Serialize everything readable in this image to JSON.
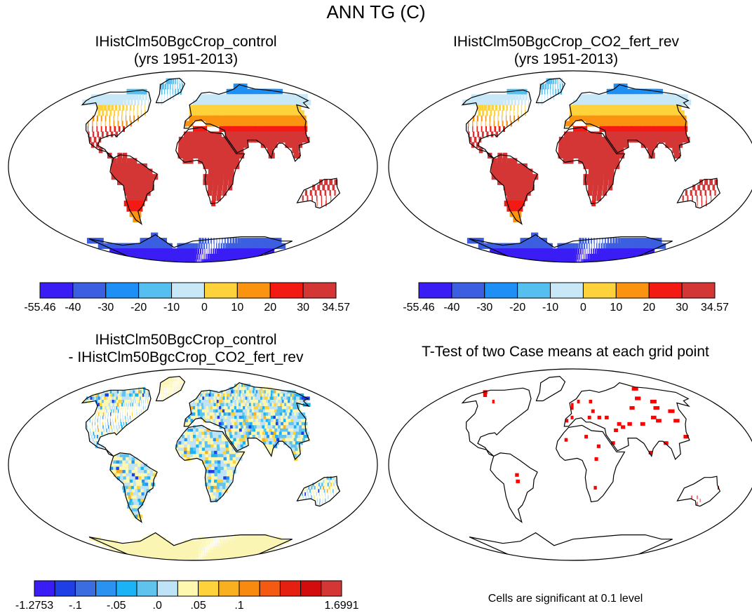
{
  "title": "ANN TG (C)",
  "panels": [
    {
      "id": "control",
      "title_lines": [
        "IHistClm50BgcCrop_control",
        "(yrs 1951-2013)"
      ],
      "field": "temperature"
    },
    {
      "id": "co2",
      "title_lines": [
        "IHistClm50BgcCrop_CO2_fert_rev",
        "(yrs 1951-2013)"
      ],
      "field": "temperature"
    },
    {
      "id": "diff",
      "title_lines": [
        "IHistClm50BgcCrop_control",
        "- IHistClm50BgcCrop_CO2_fert_rev"
      ],
      "field": "difference"
    },
    {
      "id": "ttest",
      "title_lines": [
        "T-Test of two Case means at each grid point"
      ],
      "field": "significance"
    }
  ],
  "colorbars": {
    "temperature": {
      "colors": [
        "#3a1cf5",
        "#3b5fe0",
        "#1e90f5",
        "#55c0f0",
        "#c8e8f8",
        "#fdd23a",
        "#f99310",
        "#f31a14",
        "#d43636"
      ],
      "labels": [
        "-55.46",
        "-40",
        "-30",
        "-20",
        "-10",
        "0",
        "10",
        "20",
        "30",
        "34.57"
      ]
    },
    "difference": {
      "colors": [
        "#3a1cf5",
        "#1e3fe6",
        "#3b6ce0",
        "#2a93f2",
        "#1bb3f5",
        "#60c3ee",
        "#bfe3f6",
        "#fdf7b0",
        "#fdd23a",
        "#f9b020",
        "#f98a10",
        "#f45a12",
        "#e62010",
        "#d20c0c",
        "#d43636"
      ],
      "labels": [
        "-1.2753",
        "",
        "-.1",
        "",
        "-.05",
        "",
        ".0",
        "",
        ".05",
        "",
        ".1",
        "",
        "",
        "",
        "",
        "1.6991"
      ],
      "shown_labels": [
        "-1.2753",
        "-.1",
        "-.05",
        ".0",
        ".05",
        ".1",
        "1.6991"
      ]
    }
  },
  "note": "Cells are significant at 0.1 level",
  "colors": {
    "land_fill": "#fbf5b4",
    "significant": "#ff0000",
    "coast": "#000000"
  }
}
